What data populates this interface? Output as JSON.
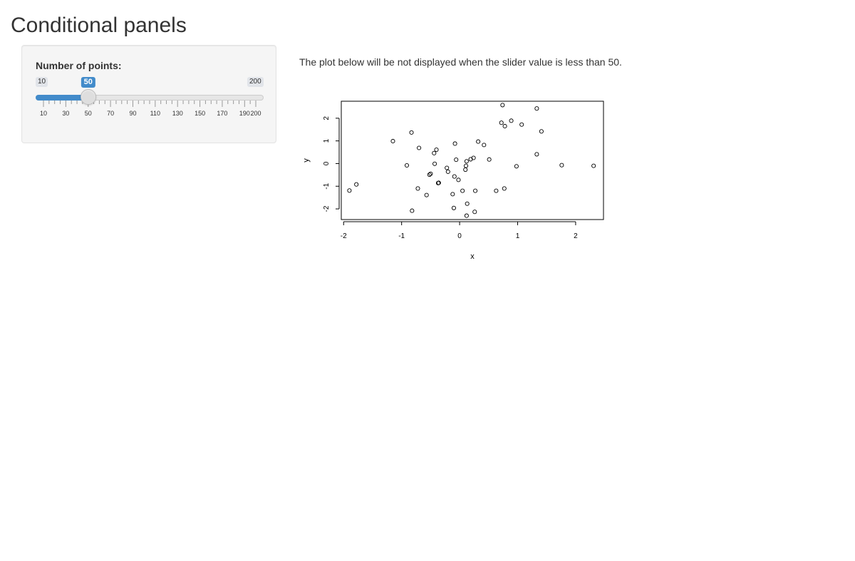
{
  "page": {
    "title": "Conditional panels"
  },
  "sidebar": {
    "slider": {
      "label": "Number of points:",
      "min": 10,
      "max": 200,
      "value": 50,
      "min_label": "10",
      "max_label": "200",
      "value_label": "50",
      "grid_labels": [
        "10",
        "30",
        "50",
        "70",
        "90",
        "110",
        "130",
        "150",
        "170",
        "190",
        "200"
      ],
      "accent_color": "#428bca"
    }
  },
  "main": {
    "description": "The plot below will be not displayed when the slider value is less than 50."
  },
  "chart_data": {
    "type": "scatter",
    "title": "",
    "xlabel": "x",
    "ylabel": "y",
    "xlim": [
      -2.04,
      2.48
    ],
    "ylim": [
      -2.47,
      2.75
    ],
    "x_ticks": [
      -2,
      -1,
      0,
      1,
      2
    ],
    "y_ticks": [
      -2,
      -1,
      0,
      1,
      2
    ],
    "x_tick_labels": [
      "-2",
      "-1",
      "0",
      "1",
      "2"
    ],
    "y_tick_labels": [
      "-2",
      "-1",
      "0",
      "1",
      "2"
    ],
    "grid": false,
    "marker": "open-circle",
    "points": [
      {
        "x": -1.9,
        "y": -1.19
      },
      {
        "x": -1.78,
        "y": -0.92
      },
      {
        "x": -1.15,
        "y": 0.99
      },
      {
        "x": -0.83,
        "y": 1.37
      },
      {
        "x": -0.82,
        "y": -2.08
      },
      {
        "x": -0.7,
        "y": 0.69
      },
      {
        "x": -0.72,
        "y": -1.1
      },
      {
        "x": -0.57,
        "y": -1.39
      },
      {
        "x": -0.91,
        "y": -0.08
      },
      {
        "x": -0.52,
        "y": -0.49
      },
      {
        "x": -0.5,
        "y": -0.45
      },
      {
        "x": -0.44,
        "y": 0.46
      },
      {
        "x": -0.4,
        "y": 0.61
      },
      {
        "x": -0.43,
        "y": -0.01
      },
      {
        "x": -0.36,
        "y": -0.85
      },
      {
        "x": -0.37,
        "y": -0.86
      },
      {
        "x": -0.22,
        "y": -0.19
      },
      {
        "x": -0.2,
        "y": -0.36
      },
      {
        "x": -0.12,
        "y": -1.35
      },
      {
        "x": -0.08,
        "y": 0.88
      },
      {
        "x": -0.09,
        "y": -0.57
      },
      {
        "x": -0.06,
        "y": 0.17
      },
      {
        "x": -0.1,
        "y": -1.96
      },
      {
        "x": -0.02,
        "y": -0.72
      },
      {
        "x": 0.05,
        "y": -1.2
      },
      {
        "x": 0.1,
        "y": -0.27
      },
      {
        "x": 0.11,
        "y": -0.1
      },
      {
        "x": 0.12,
        "y": 0.1
      },
      {
        "x": 0.13,
        "y": -1.77
      },
      {
        "x": 0.12,
        "y": -2.3
      },
      {
        "x": 0.19,
        "y": 0.19
      },
      {
        "x": 0.24,
        "y": 0.25
      },
      {
        "x": 0.26,
        "y": -2.13
      },
      {
        "x": 0.27,
        "y": -1.2
      },
      {
        "x": 0.32,
        "y": 0.97
      },
      {
        "x": 0.42,
        "y": 0.82
      },
      {
        "x": 0.51,
        "y": 0.18
      },
      {
        "x": 0.63,
        "y": -1.2
      },
      {
        "x": 0.72,
        "y": 1.8
      },
      {
        "x": 0.74,
        "y": 2.58
      },
      {
        "x": 0.78,
        "y": 1.65
      },
      {
        "x": 0.77,
        "y": -1.1
      },
      {
        "x": 0.89,
        "y": 1.89
      },
      {
        "x": 0.98,
        "y": -0.12
      },
      {
        "x": 1.07,
        "y": 1.72
      },
      {
        "x": 1.33,
        "y": 2.43
      },
      {
        "x": 1.33,
        "y": 0.41
      },
      {
        "x": 1.41,
        "y": 1.42
      },
      {
        "x": 1.76,
        "y": -0.07
      },
      {
        "x": 2.31,
        "y": -0.1
      }
    ]
  }
}
